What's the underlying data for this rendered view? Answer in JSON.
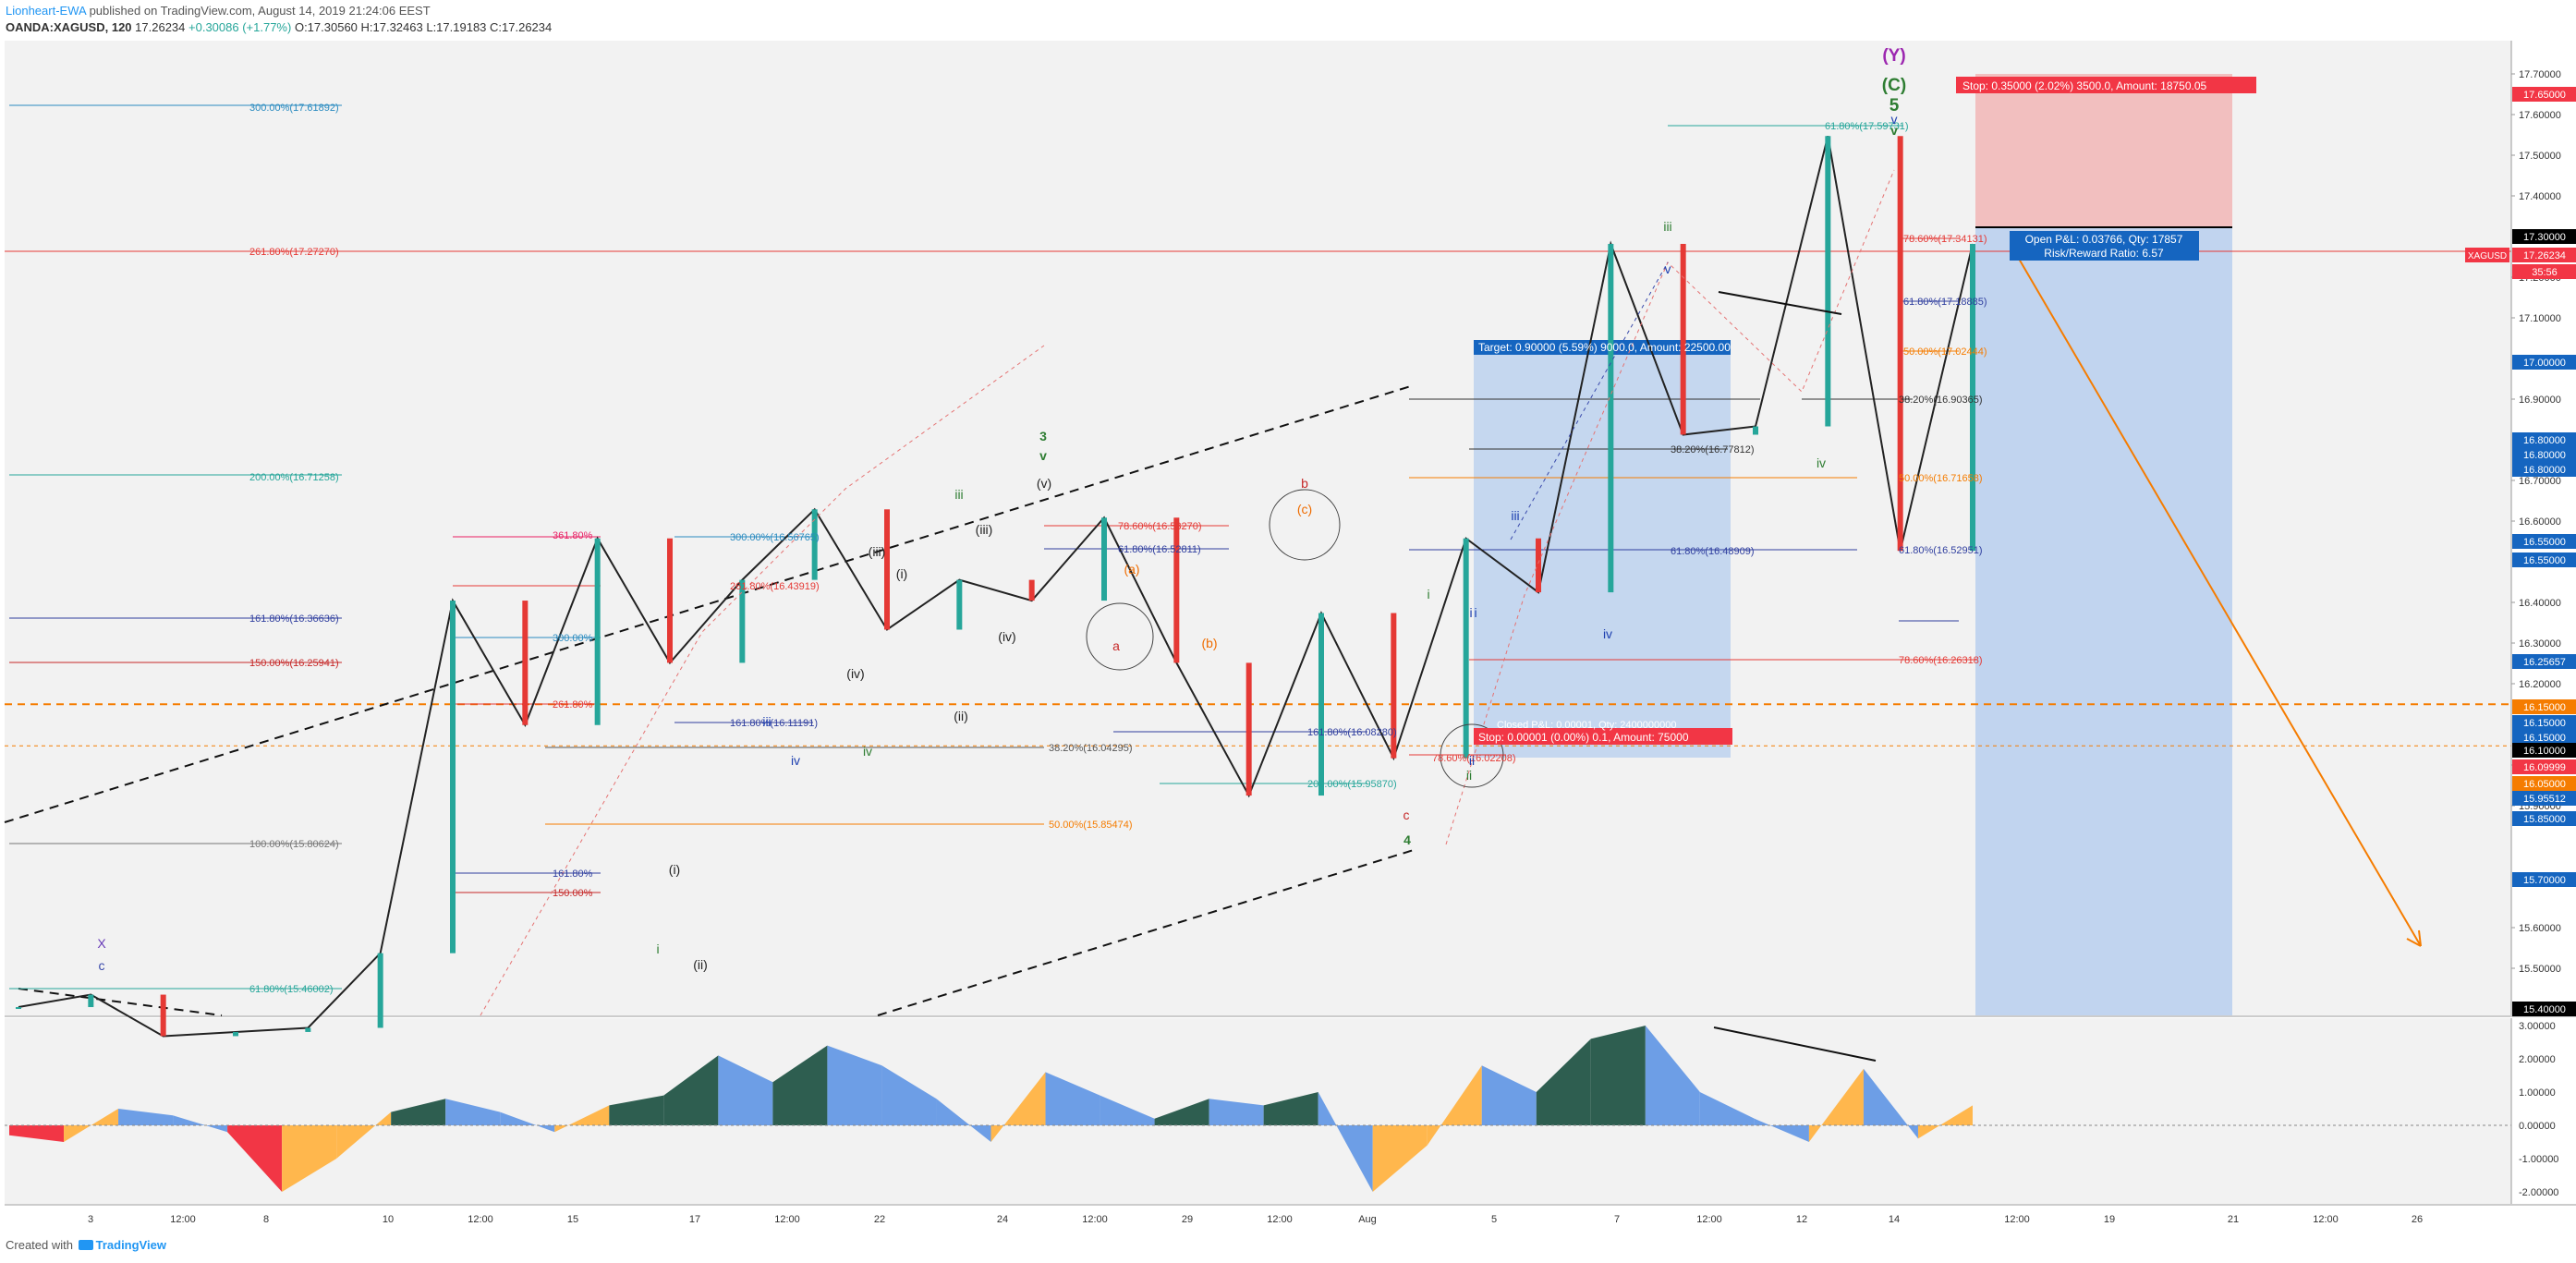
{
  "header": {
    "author": "Lionheart-EWA",
    "published": "published on TradingView.com, August 14, 2019 21:24:06 EEST",
    "symbol": "OANDA:XAGUSD, 120",
    "last": "17.26234",
    "change": "+0.30086 (+1.77%)",
    "ohlc": "O:17.30560 H:17.32463 L:17.19183 C:17.26234"
  },
  "footer": {
    "created_with": "Created with",
    "brand": "TradingView"
  },
  "chart_data": {
    "type": "line",
    "symbol": "XAGUSD",
    "interval": "120",
    "ylim": [
      15.4,
      17.75
    ],
    "y_ticks": [
      "17.70000",
      "17.60000",
      "17.50000",
      "17.40000",
      "17.20000",
      "17.10000",
      "16.90000",
      "16.70000",
      "16.60000",
      "16.40000",
      "16.30000",
      "16.20000",
      "16.00000",
      "15.90000",
      "15.60000",
      "15.50000"
    ],
    "x_ticks": [
      "3",
      "12:00",
      "8",
      "10",
      "12:00",
      "15",
      "17",
      "12:00",
      "22",
      "24",
      "12:00",
      "29",
      "12:00",
      "Aug",
      "5",
      "7",
      "12:00",
      "12",
      "14",
      "12:00",
      "19",
      "21",
      "12:00",
      "26"
    ],
    "price_tags": [
      {
        "text": "17.65000",
        "color": "#f23645"
      },
      {
        "text": "17.30000",
        "color": "#000000"
      },
      {
        "text": "17.26234",
        "color": "#f23645"
      },
      {
        "text": "35:56",
        "color": "#f23645"
      },
      {
        "text": "17.00000",
        "color": "#1565c0"
      },
      {
        "text": "16.80000",
        "color": "#1565c0"
      },
      {
        "text": "16.80000",
        "color": "#1565c0"
      },
      {
        "text": "16.80000",
        "color": "#1565c0"
      },
      {
        "text": "16.55000",
        "color": "#1565c0"
      },
      {
        "text": "16.55000",
        "color": "#1565c0"
      },
      {
        "text": "16.25657",
        "color": "#1565c0"
      },
      {
        "text": "16.15000",
        "color": "#f57c00"
      },
      {
        "text": "16.15000",
        "color": "#1565c0"
      },
      {
        "text": "16.15000",
        "color": "#1565c0"
      },
      {
        "text": "16.10000",
        "color": "#000000"
      },
      {
        "text": "16.09999",
        "color": "#f23645"
      },
      {
        "text": "16.05000",
        "color": "#f57c00"
      },
      {
        "text": "15.95512",
        "color": "#1565c0"
      },
      {
        "text": "15.85000",
        "color": "#1565c0"
      },
      {
        "text": "15.70000",
        "color": "#1565c0"
      },
      {
        "text": "15.40000",
        "color": "#000000"
      }
    ],
    "symbol_tag": "XAGUSD",
    "price_series": [
      [
        "pre",
        15.42
      ],
      [
        "3",
        15.45
      ],
      [
        "8",
        15.35
      ],
      [
        "10",
        15.36
      ],
      [
        "15",
        15.37
      ],
      [
        "17",
        15.55
      ],
      [
        "19",
        16.4
      ],
      [
        "20",
        16.1
      ],
      [
        "21",
        16.55
      ],
      [
        "22",
        16.25
      ],
      [
        "23",
        16.45
      ],
      [
        "24",
        16.62
      ],
      [
        "26",
        16.33
      ],
      [
        "27",
        16.45
      ],
      [
        "29",
        16.4
      ],
      [
        "31",
        16.6
      ],
      [
        "Aug 1",
        16.25
      ],
      [
        "Aug 2",
        15.93
      ],
      [
        "Aug 5",
        16.37
      ],
      [
        "Aug 5b",
        16.02
      ],
      [
        "Aug 6",
        16.55
      ],
      [
        "Aug 7",
        16.42
      ],
      [
        "Aug 8",
        17.26
      ],
      [
        "Aug 9",
        16.8
      ],
      [
        "Aug 12",
        16.82
      ],
      [
        "Aug 13",
        17.52
      ],
      [
        "Aug 13b",
        16.52
      ],
      [
        "Aug 14",
        17.26
      ]
    ],
    "position": {
      "stop_label": "Stop: 0.35000 (2.02%) 3500.0, Amount: 18750.05",
      "target_label": "Target: 0.90000 (5.59%) 9000.0, Amount: 22500.00",
      "open_pl": "Open P&L: 0.03766, Qty: 17857",
      "risk_reward": "Risk/Reward Ratio: 6.57",
      "entry": 17.3,
      "stop": 17.65,
      "target": 16.4
    },
    "position2": {
      "stop_label": "Stop: 0.00001 (0.00%) 0.1, Amount: 75000",
      "hidden_label": "Closed P&L: 0.00001, Qty: 2400000000"
    },
    "fib_labels": [
      {
        "text": "300.00%(17.61892)",
        "color": "#2a8bc0"
      },
      {
        "text": "261.80%(17.27270)",
        "color": "#e53935"
      },
      {
        "text": "200.00%(16.71258)",
        "color": "#26a69a"
      },
      {
        "text": "361.80%",
        "color": "#e91e63"
      },
      {
        "text": "300.00%(16.56765)",
        "color": "#2a8bc0"
      },
      {
        "text": "261.80%(16.43919)",
        "color": "#e53935"
      },
      {
        "text": "161.80%(16.36636)",
        "color": "#303f9f"
      },
      {
        "text": "150.00%(16.25941)",
        "color": "#c62828"
      },
      {
        "text": "300.00%",
        "color": "#2a8bc0"
      },
      {
        "text": "261.80%",
        "color": "#e53935"
      },
      {
        "text": "161.80%(16.11191)",
        "color": "#303f9f"
      },
      {
        "text": "38.20%(16.04295)",
        "color": "#555555"
      },
      {
        "text": "100.00%(15.80624)",
        "color": "#777777"
      },
      {
        "text": "161.80%",
        "color": "#303f9f"
      },
      {
        "text": "150.00%",
        "color": "#c62828"
      },
      {
        "text": "61.80%(15.46002)",
        "color": "#26a69a"
      },
      {
        "text": "50.00%(15.85474)",
        "color": "#f57c00"
      },
      {
        "text": "78.60%(16.58270)",
        "color": "#e53935"
      },
      {
        "text": "61.80%(16.52811)",
        "color": "#303f9f"
      },
      {
        "text": "161.80%(16.08280)",
        "color": "#303f9f"
      },
      {
        "text": "200.00%(15.95870)",
        "color": "#26a69a"
      },
      {
        "text": "78.60%(16.02208)",
        "color": "#e53935"
      },
      {
        "text": "38.20%(16.77812)",
        "color": "#333333"
      },
      {
        "text": "61.80%(16.48909)",
        "color": "#303f9f"
      },
      {
        "text": "61.80%(17.59731)",
        "color": "#26a69a"
      },
      {
        "text": "78.60%(17.34131)",
        "color": "#e53935"
      },
      {
        "text": "61.80%(17.18885)",
        "color": "#303f9f"
      },
      {
        "text": "50.00%(17.02444)",
        "color": "#f57c00"
      },
      {
        "text": "38.20%(16.90365)",
        "color": "#333333"
      },
      {
        "text": "50.00%(16.71658)",
        "color": "#f57c00"
      },
      {
        "text": "61.80%(16.52951)",
        "color": "#303f9f"
      },
      {
        "text": "78.60%(16.26318)",
        "color": "#e53935"
      }
    ],
    "wave_labels": [
      {
        "text": "(Y)",
        "color": "#9c27b0"
      },
      {
        "text": "(C)",
        "color": "#2e7d32"
      },
      {
        "text": "5",
        "color": "#2e7d32"
      },
      {
        "text": "v",
        "color": "#2e7d32"
      },
      {
        "text": "3",
        "color": "#2e7d32"
      },
      {
        "text": "v",
        "color": "#2e7d32"
      },
      {
        "text": "4",
        "color": "#2e7d32"
      },
      {
        "text": "iii",
        "color": "#2e7d32"
      },
      {
        "text": "iv",
        "color": "#2e7d32"
      },
      {
        "text": "i",
        "color": "#2e7d32"
      },
      {
        "text": "ii",
        "color": "#2e7d32"
      },
      {
        "text": "iii",
        "color": "#2e7d32"
      },
      {
        "text": "iv",
        "color": "#2e7d32"
      },
      {
        "text": "i",
        "color": "#2e7d32"
      },
      {
        "text": "b",
        "color": "#c62828"
      },
      {
        "text": "a",
        "color": "#c62828"
      },
      {
        "text": "c",
        "color": "#c62828"
      },
      {
        "text": "(c)",
        "color": "#ef6c00"
      },
      {
        "text": "(a)",
        "color": "#ef6c00"
      },
      {
        "text": "(b)",
        "color": "#ef6c00"
      },
      {
        "text": "(v)",
        "color": "#222222"
      },
      {
        "text": "(iii)",
        "color": "#222222"
      },
      {
        "text": "(iii)",
        "color": "#222222"
      },
      {
        "text": "(i)",
        "color": "#222222"
      },
      {
        "text": "(iv)",
        "color": "#222222"
      },
      {
        "text": "(iv)",
        "color": "#222222"
      },
      {
        "text": "(ii)",
        "color": "#222222"
      },
      {
        "text": "(ii)",
        "color": "#222222"
      },
      {
        "text": "(i)",
        "color": "#222222"
      },
      {
        "text": "iii",
        "color": "#1e40b0"
      },
      {
        "text": "iv",
        "color": "#1e40b0"
      },
      {
        "text": "i",
        "color": "#1e40b0"
      },
      {
        "text": "ii",
        "color": "#1e40b0"
      },
      {
        "text": "v",
        "color": "#1e40b0"
      },
      {
        "text": "iii",
        "color": "#1e40b0"
      },
      {
        "text": "i",
        "color": "#1e40b0"
      },
      {
        "text": "iv",
        "color": "#1e40b0"
      },
      {
        "text": "v",
        "color": "#1e40b0"
      },
      {
        "text": "X",
        "color": "#673ab7"
      },
      {
        "text": "c",
        "color": "#3949ab"
      }
    ],
    "oscillator": {
      "y_ticks": [
        "3.00000",
        "2.00000",
        "1.00000",
        "0.00000",
        "-1.00000",
        "-2.00000"
      ],
      "ylim": [
        -2.4,
        3.0
      ],
      "values": [
        -0.3,
        -0.5,
        0.5,
        0.3,
        -0.2,
        -2.0,
        -1.0,
        0.4,
        0.8,
        0.4,
        -0.2,
        0.6,
        0.9,
        2.1,
        1.3,
        2.4,
        1.8,
        0.8,
        -0.5,
        1.6,
        0.9,
        0.2,
        0.8,
        0.6,
        1.0,
        -2.0,
        -0.6,
        1.8,
        1.0,
        2.6,
        3.0,
        1.0,
        0.2,
        -0.5,
        1.7,
        -0.4,
        0.6
      ],
      "colors": {
        "up_strong": "#2e5e50",
        "up_weak": "#6d9ee6",
        "down_strong": "#f23645",
        "down_weak": "#ffb74d"
      }
    }
  }
}
